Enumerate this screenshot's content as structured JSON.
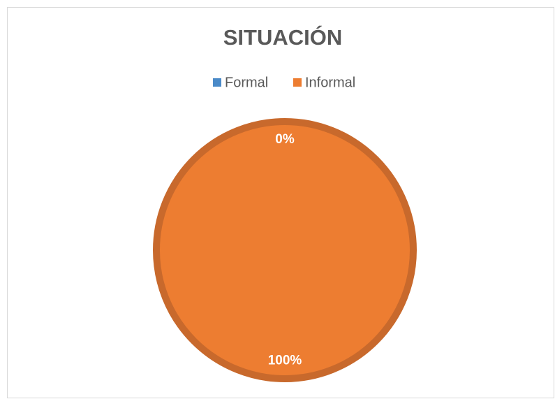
{
  "chart_data": {
    "type": "pie",
    "title": "SITUACIÓN",
    "categories": [
      "Formal",
      "Informal"
    ],
    "values": [
      0,
      100
    ],
    "value_labels": [
      "0%",
      "100%"
    ],
    "colors": [
      "#4a8ac8",
      "#ed7d31"
    ],
    "legend": "top"
  }
}
